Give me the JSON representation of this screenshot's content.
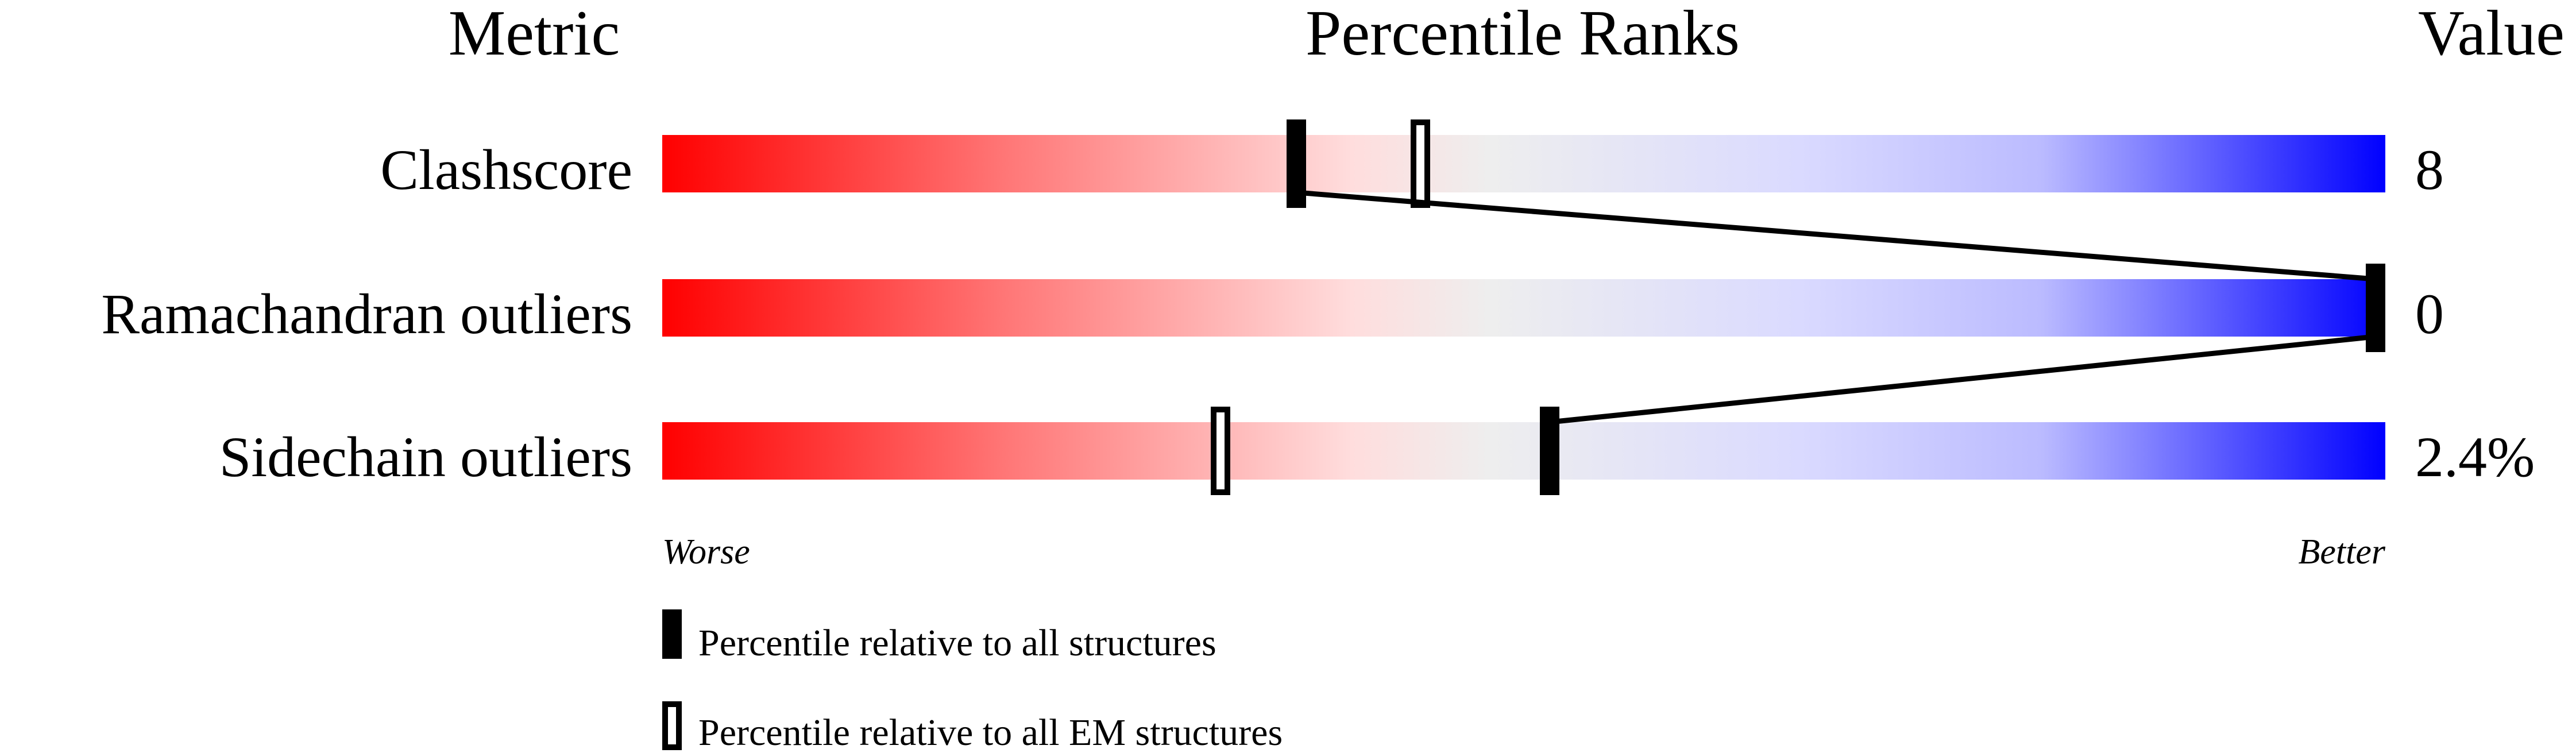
{
  "chart_data": {
    "type": "bar",
    "headers": {
      "metric": "Metric",
      "ranks": "Percentile Ranks",
      "value": "Value"
    },
    "xlim": [
      0,
      100
    ],
    "axis_labels": {
      "left": "Worse",
      "right": "Better"
    },
    "metrics": [
      {
        "name": "Clashscore",
        "value": "8",
        "percentile_all": 36.8,
        "percentile_em": 44.0
      },
      {
        "name": "Ramachandran outliers",
        "value": "0",
        "percentile_all": 100,
        "percentile_em": 100
      },
      {
        "name": "Sidechain outliers",
        "value": "2.4%",
        "percentile_all": 51.5,
        "percentile_em": 32.4
      }
    ],
    "legend": {
      "all": "Percentile relative to all structures",
      "em": "Percentile relative to all EM structures"
    },
    "colors": {
      "worse": "#ff0000",
      "mid": "#eeeeee",
      "better": "#0000ff",
      "marker": "#000000"
    }
  }
}
